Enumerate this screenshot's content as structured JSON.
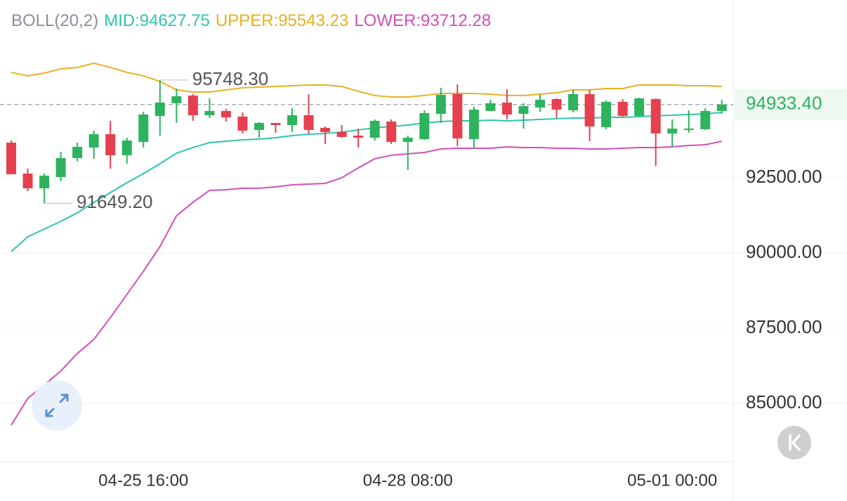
{
  "chart_data": {
    "type": "candlestick",
    "indicator": "BOLL(20,2)",
    "categories": [
      null,
      null,
      null,
      null,
      null,
      null,
      null,
      null,
      "04-25 16:00",
      null,
      null,
      null,
      null,
      null,
      null,
      null,
      null,
      null,
      null,
      null,
      null,
      null,
      null,
      null,
      "04-28 08:00",
      null,
      null,
      null,
      null,
      null,
      null,
      null,
      null,
      null,
      null,
      null,
      null,
      null,
      null,
      null,
      "05-01 00:00",
      null,
      null,
      null
    ],
    "open": [
      93668,
      92640,
      92150,
      92523,
      93154,
      93505,
      93949,
      93248,
      93692,
      94556,
      94977,
      95234,
      94579,
      94720,
      94533,
      94089,
      94322,
      94252,
      94579,
      94159,
      94019,
      93902,
      93832,
      94369,
      93692,
      93785,
      94626,
      95280,
      93785,
      94720,
      95000,
      94626,
      94836,
      95117,
      94743,
      95280,
      94182,
      95023,
      94556,
      95117,
      93972,
      94089,
      94112,
      94720
    ],
    "high": [
      93738,
      92804,
      92640,
      93364,
      93668,
      94065,
      94392,
      93832,
      94696,
      95748.3,
      95467,
      95280,
      95140,
      94790,
      94673,
      94346,
      94322,
      94813,
      95280,
      94206,
      94252,
      94135,
      94439,
      94439,
      93902,
      94743,
      95491,
      95607,
      94860,
      95093,
      95444,
      94977,
      95257,
      95140,
      95421,
      95421,
      95070,
      95117,
      95163,
      95140,
      94439,
      94743,
      94813,
      95093
    ],
    "low": [
      92617,
      92056,
      91649.2,
      92383,
      93037,
      93131,
      92804,
      92967,
      93505,
      93902,
      94322,
      94392,
      94486,
      94369,
      93972,
      93832,
      93995,
      94019,
      93972,
      93621,
      93832,
      93505,
      93738,
      93621,
      92757,
      93762,
      94322,
      93551,
      93458,
      94720,
      94439,
      94135,
      94696,
      94486,
      94673,
      93715,
      94112,
      94533,
      94533,
      92897,
      93528,
      93995,
      94089,
      94626
    ],
    "close": [
      92617,
      92150,
      92570,
      93154,
      93528,
      93949,
      93248,
      93738,
      94603,
      95000,
      95210,
      94579,
      94720,
      94509,
      94065,
      94322,
      94252,
      94579,
      94089,
      94019,
      93855,
      93832,
      94392,
      93692,
      93832,
      94649,
      95257,
      93808,
      94766,
      94977,
      94603,
      94883,
      95093,
      94766,
      95280,
      94206,
      95023,
      94556,
      95140,
      93972,
      94135,
      94135,
      94720,
      94933.4
    ],
    "up_color": "#2db35d",
    "down_color": "#e5404f",
    "series": [
      {
        "name": "MID:94627.75",
        "color": "#2ec4b0",
        "values": [
          90047,
          90537,
          90794,
          91051,
          91332,
          91682,
          92009,
          92336,
          92640,
          92967,
          93318,
          93505,
          93668,
          93715,
          93762,
          93785,
          93832,
          93902,
          93949,
          93972,
          94019,
          94089,
          94159,
          94206,
          94252,
          94322,
          94369,
          94392,
          94392,
          94416,
          94392,
          94416,
          94439,
          94463,
          94486,
          94486,
          94509,
          94509,
          94533,
          94556,
          94579,
          94603,
          94626,
          94673
        ]
      },
      {
        "name": "UPPER:95543.23",
        "color": "#e8b020",
        "values": [
          96005,
          95888,
          95981,
          96121,
          96168,
          96308,
          96168,
          96005,
          95888,
          95701,
          95421,
          95350,
          95350,
          95421,
          95491,
          95514,
          95537,
          95561,
          95584,
          95584,
          95537,
          95374,
          95234,
          95187,
          95187,
          95234,
          95304,
          95304,
          95304,
          95280,
          95234,
          95234,
          95280,
          95327,
          95421,
          95421,
          95467,
          95467,
          95584,
          95584,
          95584,
          95561,
          95561,
          95537
        ]
      },
      {
        "name": "LOWER:93712.28",
        "color": "#d24fb8",
        "values": [
          84276,
          85164,
          85608,
          86075,
          86659,
          87126,
          87851,
          88622,
          89393,
          90210,
          91238,
          91682,
          92079,
          92103,
          92150,
          92150,
          92196,
          92266,
          92290,
          92313,
          92500,
          92827,
          93131,
          93248,
          93294,
          93341,
          93458,
          93481,
          93481,
          93481,
          93528,
          93505,
          93505,
          93481,
          93481,
          93458,
          93458,
          93481,
          93505,
          93505,
          93528,
          93575,
          93598,
          93715
        ]
      }
    ],
    "high_label": "95748.30",
    "low_label": "91649.20",
    "last_price": {
      "value": 94933.4,
      "label": "94933.40"
    },
    "ylim": [
      83060,
      98410
    ],
    "yticks": [
      {
        "value": 85000,
        "label": "85000.00"
      },
      {
        "value": 87500,
        "label": "87500.00"
      },
      {
        "value": 90000,
        "label": "90000.00"
      },
      {
        "value": 92500,
        "label": "92500.00"
      }
    ],
    "grid": true
  }
}
